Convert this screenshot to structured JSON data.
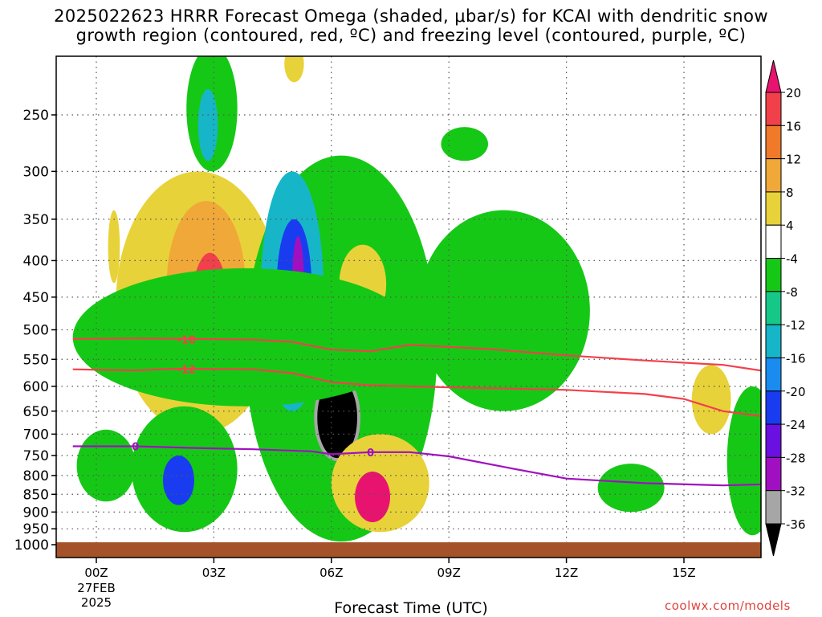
{
  "title_line1": "2025022623 HRRR Forecast Omega (shaded, μbar/s) for KCAI with dendritic snow",
  "title_line2": "growth region (contoured, red, ºC) and freezing level (contoured, purple, ºC)",
  "credit": "coolwx.com/models",
  "chart_data": {
    "type": "heatmap",
    "title": "2025022623 HRRR Forecast Omega (shaded, μbar/s) for KCAI with dendritic snow growth region (contoured, red, ºC) and freezing level (contoured, purple, ºC)",
    "xlabel": "Forecast Time (UTC)",
    "ylabel": "",
    "x_ticks": [
      {
        "label": "00Z",
        "value": 0,
        "sub": [
          "27FEB",
          "2025"
        ]
      },
      {
        "label": "03Z",
        "value": 3,
        "sub": []
      },
      {
        "label": "06Z",
        "value": 6,
        "sub": []
      },
      {
        "label": "09Z",
        "value": 9,
        "sub": []
      },
      {
        "label": "12Z",
        "value": 12,
        "sub": []
      },
      {
        "label": "15Z",
        "value": 15,
        "sub": []
      }
    ],
    "xlim": [
      -0.6,
      17.4
    ],
    "y_ticks": [
      250,
      300,
      350,
      400,
      450,
      500,
      550,
      600,
      650,
      700,
      750,
      800,
      850,
      900,
      950,
      1000
    ],
    "ylim": [
      200,
      1020
    ],
    "y_scale": "log-pressure (inverted)",
    "grid": true,
    "colorbar": {
      "labels": [
        "20",
        "16",
        "12",
        "8",
        "4",
        "-4",
        "-8",
        "-12",
        "-16",
        "-20",
        "-24",
        "-28",
        "-32",
        "-36"
      ],
      "colors": [
        "#e8136f",
        "#f2404a",
        "#f07a2a",
        "#f0a838",
        "#e8d23a",
        "#ffffff",
        "#16c816",
        "#16c888",
        "#16b6c8",
        "#1a8cf0",
        "#1a3cf0",
        "#6a10e0",
        "#a010c0",
        "#a6a6a6",
        "#000000"
      ]
    },
    "contours": [
      {
        "label": "-18",
        "color": "#f2404a",
        "points": [
          [
            -0.6,
            515
          ],
          [
            1,
            514
          ],
          [
            2.5,
            515
          ],
          [
            4,
            516
          ],
          [
            5,
            520
          ],
          [
            6,
            533
          ],
          [
            7,
            536
          ],
          [
            8,
            525
          ],
          [
            10,
            532
          ],
          [
            12,
            543
          ],
          [
            14,
            552
          ],
          [
            16,
            560
          ],
          [
            17.4,
            575
          ]
        ]
      },
      {
        "label": "-12",
        "color": "#f2404a",
        "points": [
          [
            -0.6,
            568
          ],
          [
            1,
            570
          ],
          [
            2,
            567
          ],
          [
            4,
            568
          ],
          [
            5,
            575
          ],
          [
            6,
            592
          ],
          [
            7,
            598
          ],
          [
            9,
            602
          ],
          [
            12,
            607
          ],
          [
            14,
            615
          ],
          [
            15,
            625
          ],
          [
            16,
            650
          ],
          [
            17.4,
            665
          ]
        ]
      },
      {
        "label": "0",
        "color": "#a010c0",
        "points": [
          [
            -0.6,
            728
          ],
          [
            1,
            728
          ],
          [
            2.5,
            732
          ],
          [
            4,
            735
          ],
          [
            5.5,
            740
          ],
          [
            6,
            747
          ],
          [
            7,
            742
          ],
          [
            8,
            742
          ],
          [
            9,
            752
          ],
          [
            10.5,
            780
          ],
          [
            12,
            808
          ],
          [
            14,
            820
          ],
          [
            16,
            826
          ],
          [
            17.4,
            822
          ]
        ]
      }
    ],
    "contour_label_positions": [
      {
        "label": "-18",
        "x": 2.3,
        "y": 516
      },
      {
        "label": "-12",
        "x": 2.3,
        "y": 568
      },
      {
        "label": "0",
        "x": 1.0,
        "y": 728
      },
      {
        "label": "0",
        "x": 7.0,
        "y": 742
      }
    ],
    "shaded_regions": [
      {
        "level": "-4",
        "x_range": [
          2.3,
          3.6
        ],
        "p_range": [
          200,
          300
        ]
      },
      {
        "level": "-12",
        "x_range": [
          2.6,
          3.1
        ],
        "p_range": [
          230,
          290
        ]
      },
      {
        "level": "4",
        "x_range": [
          4.8,
          5.3
        ],
        "p_range": [
          200,
          225
        ]
      },
      {
        "level": "4",
        "x_range": [
          0.3,
          0.6
        ],
        "p_range": [
          340,
          430
        ]
      },
      {
        "level": "4",
        "x_range": [
          0.5,
          4.7
        ],
        "p_range": [
          300,
          700
        ]
      },
      {
        "level": "8",
        "x_range": [
          1.8,
          3.8
        ],
        "p_range": [
          330,
          560
        ]
      },
      {
        "level": "16",
        "x_range": [
          2.4,
          3.4
        ],
        "p_range": [
          390,
          590
        ]
      },
      {
        "level": "20",
        "x_range": [
          2.6,
          3.2
        ],
        "p_range": [
          420,
          580
        ]
      },
      {
        "level": "-4",
        "x_range": [
          3.8,
          8.7
        ],
        "p_range": [
          285,
          990
        ]
      },
      {
        "level": "-12",
        "x_range": [
          4.2,
          5.8
        ],
        "p_range": [
          300,
          650
        ]
      },
      {
        "level": "-20",
        "x_range": [
          4.6,
          5.5
        ],
        "p_range": [
          350,
          550
        ]
      },
      {
        "level": "-28",
        "x_range": [
          5.0,
          5.3
        ],
        "p_range": [
          370,
          500
        ]
      },
      {
        "level": "-36",
        "x_range": [
          5.6,
          6.7
        ],
        "p_range": [
          580,
          760
        ]
      },
      {
        "level": "4",
        "x_range": [
          6.2,
          7.4
        ],
        "p_range": [
          380,
          490
        ]
      },
      {
        "level": "4",
        "x_range": [
          6.0,
          8.5
        ],
        "p_range": [
          700,
          960
        ]
      },
      {
        "level": "20",
        "x_range": [
          6.6,
          7.5
        ],
        "p_range": [
          790,
          930
        ]
      },
      {
        "level": "-4",
        "x_range": [
          -0.6,
          8.2
        ],
        "p_range": [
          410,
          640
        ]
      },
      {
        "level": "-4",
        "x_range": [
          8.2,
          12.6
        ],
        "p_range": [
          340,
          650
        ]
      },
      {
        "level": "-4",
        "x_range": [
          8.8,
          10.0
        ],
        "p_range": [
          260,
          290
        ]
      },
      {
        "level": "-4",
        "x_range": [
          -0.5,
          1.0
        ],
        "p_range": [
          690,
          870
        ]
      },
      {
        "level": "-4",
        "x_range": [
          0.9,
          3.6
        ],
        "p_range": [
          640,
          960
        ]
      },
      {
        "level": "-20",
        "x_range": [
          1.7,
          2.5
        ],
        "p_range": [
          750,
          880
        ]
      },
      {
        "level": "-4",
        "x_range": [
          12.8,
          14.5
        ],
        "p_range": [
          770,
          900
        ]
      },
      {
        "level": "-4",
        "x_range": [
          16.1,
          17.4
        ],
        "p_range": [
          600,
          970
        ]
      },
      {
        "level": "4",
        "x_range": [
          15.2,
          16.2
        ],
        "p_range": [
          560,
          700
        ]
      }
    ]
  }
}
